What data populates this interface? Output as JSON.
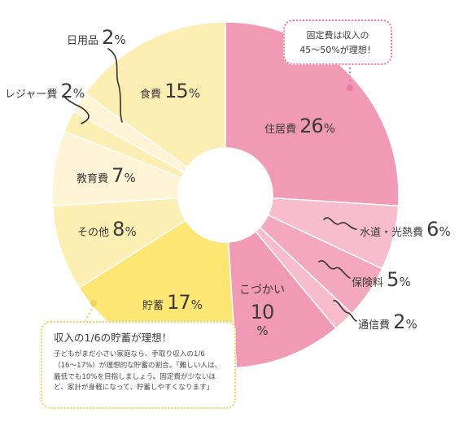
{
  "chart_data": {
    "type": "pie",
    "slices": [
      {
        "label": "住居費",
        "value": 26,
        "color": "#f19ab6"
      },
      {
        "label": "水道・光熱費",
        "value": 6,
        "color": "#f7bccd"
      },
      {
        "label": "保険料",
        "value": 5,
        "color": "#f3a8c0"
      },
      {
        "label": "通信費",
        "value": 2,
        "color": "#f7bccd"
      },
      {
        "label": "こづかい",
        "value": 10,
        "color": "#f19ab6"
      },
      {
        "label": "貯蓄",
        "value": 17,
        "color": "#fde673"
      },
      {
        "label": "その他",
        "value": 8,
        "color": "#fdeeb4"
      },
      {
        "label": "教育費",
        "value": 7,
        "color": "#fff5d6"
      },
      {
        "label": "レジャー費",
        "value": 2,
        "color": "#fdeeb4"
      },
      {
        "label": "日用品",
        "value": 2,
        "color": "#fff5d6"
      },
      {
        "label": "食費",
        "value": 15,
        "color": "#fdeeb4"
      }
    ],
    "unit": "%"
  },
  "callouts": {
    "fixed_costs": {
      "line1": "固定費は収入の",
      "line2": "45〜50%が理想！"
    },
    "savings": {
      "heading": "収入の1/6の貯蓄が理想！",
      "body": "子どもがまだ小さい家庭なら、手取り収入の1/6（16〜17%）が理想的な貯蓄の割合。「難しい人は、最低でも10%を目指しましょう。固定費が少ないほど、家計が身軽になって、貯蓄しやすくなります」"
    }
  },
  "colors": {
    "pink": "#f19ab6",
    "yellow": "#fde673",
    "cream": "#fdeeb4",
    "line": "#333333"
  }
}
